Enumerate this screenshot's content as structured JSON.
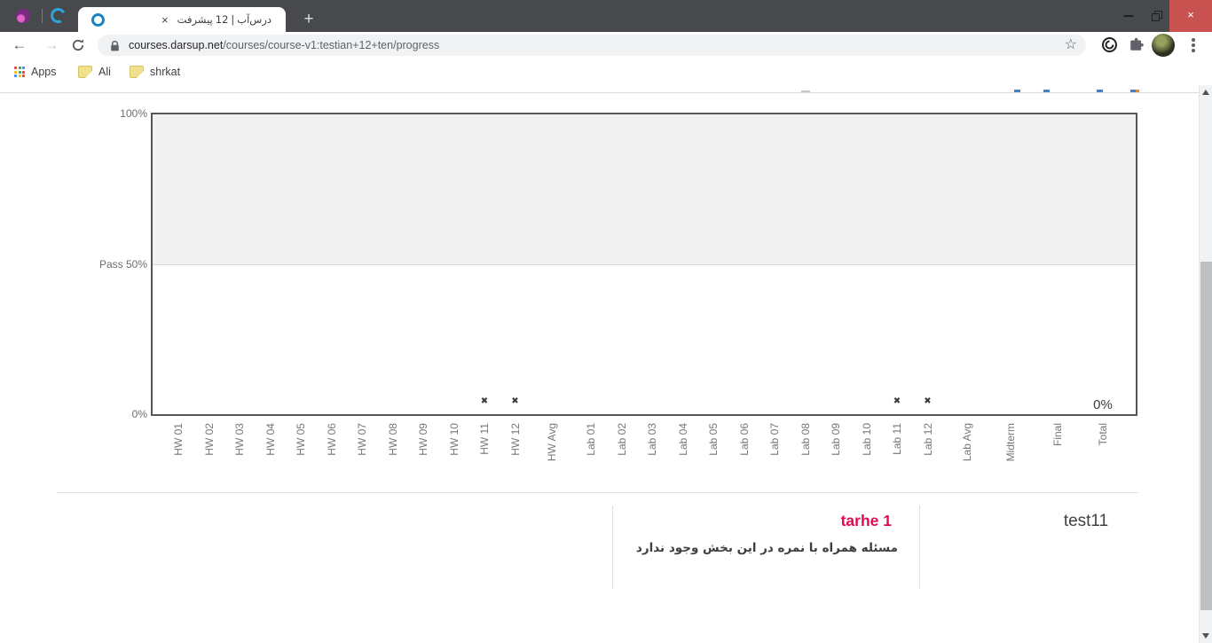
{
  "browser": {
    "tab": {
      "close": "×",
      "title_tokens": [
        "پیشرفت",
        "12",
        "|",
        "درس‌آب"
      ]
    },
    "new_tab": "+",
    "window_controls": {
      "close": "×"
    },
    "nav": {
      "back": "←",
      "forward": "→"
    },
    "omnibox": {
      "domain": "courses.darsup.net",
      "path": "/courses/course-v1:testian+12+ten/progress",
      "star": "☆"
    },
    "bookmarks": {
      "apps": "Apps",
      "ali": "Ali",
      "shrkat": "shrkat"
    }
  },
  "chart_data": {
    "type": "scatter",
    "title": "",
    "categories": [
      "HW 01",
      "HW 02",
      "HW 03",
      "HW 04",
      "HW 05",
      "HW 06",
      "HW 07",
      "HW 08",
      "HW 09",
      "HW 10",
      "HW 11",
      "HW 12",
      "HW Avg",
      "Lab 01",
      "Lab 02",
      "Lab 03",
      "Lab 04",
      "Lab 05",
      "Lab 06",
      "Lab 07",
      "Lab 08",
      "Lab 09",
      "Lab 10",
      "Lab 11",
      "Lab 12",
      "Lab Avg",
      "Midterm",
      "Final",
      "Total"
    ],
    "ylim": [
      0,
      100
    ],
    "y_ticks": [
      {
        "pct": 100,
        "label": "100%"
      },
      {
        "pct": 50,
        "label": "Pass 50%"
      },
      {
        "pct": 0,
        "label": "0%"
      }
    ],
    "pass_threshold_pct": 50,
    "shaded_band_pct": [
      50,
      100
    ],
    "grid": false,
    "markers": [
      {
        "category": "HW 11",
        "pct": 4,
        "symbol": "✖"
      },
      {
        "category": "HW 12",
        "pct": 4,
        "symbol": "✖"
      },
      {
        "category": "Lab 11",
        "pct": 4,
        "symbol": "✖"
      },
      {
        "category": "Lab 12",
        "pct": 4,
        "symbol": "✖"
      }
    ],
    "value_labels": [
      {
        "category": "Total",
        "pct": 0,
        "text": "0%"
      }
    ]
  },
  "content": {
    "subsection_title": "tarhe 1",
    "subsection_note": "مسئله همراه با نمره در این بخش وجود ندارد",
    "section_title": "test11",
    "accent_color": "#e4084f"
  }
}
